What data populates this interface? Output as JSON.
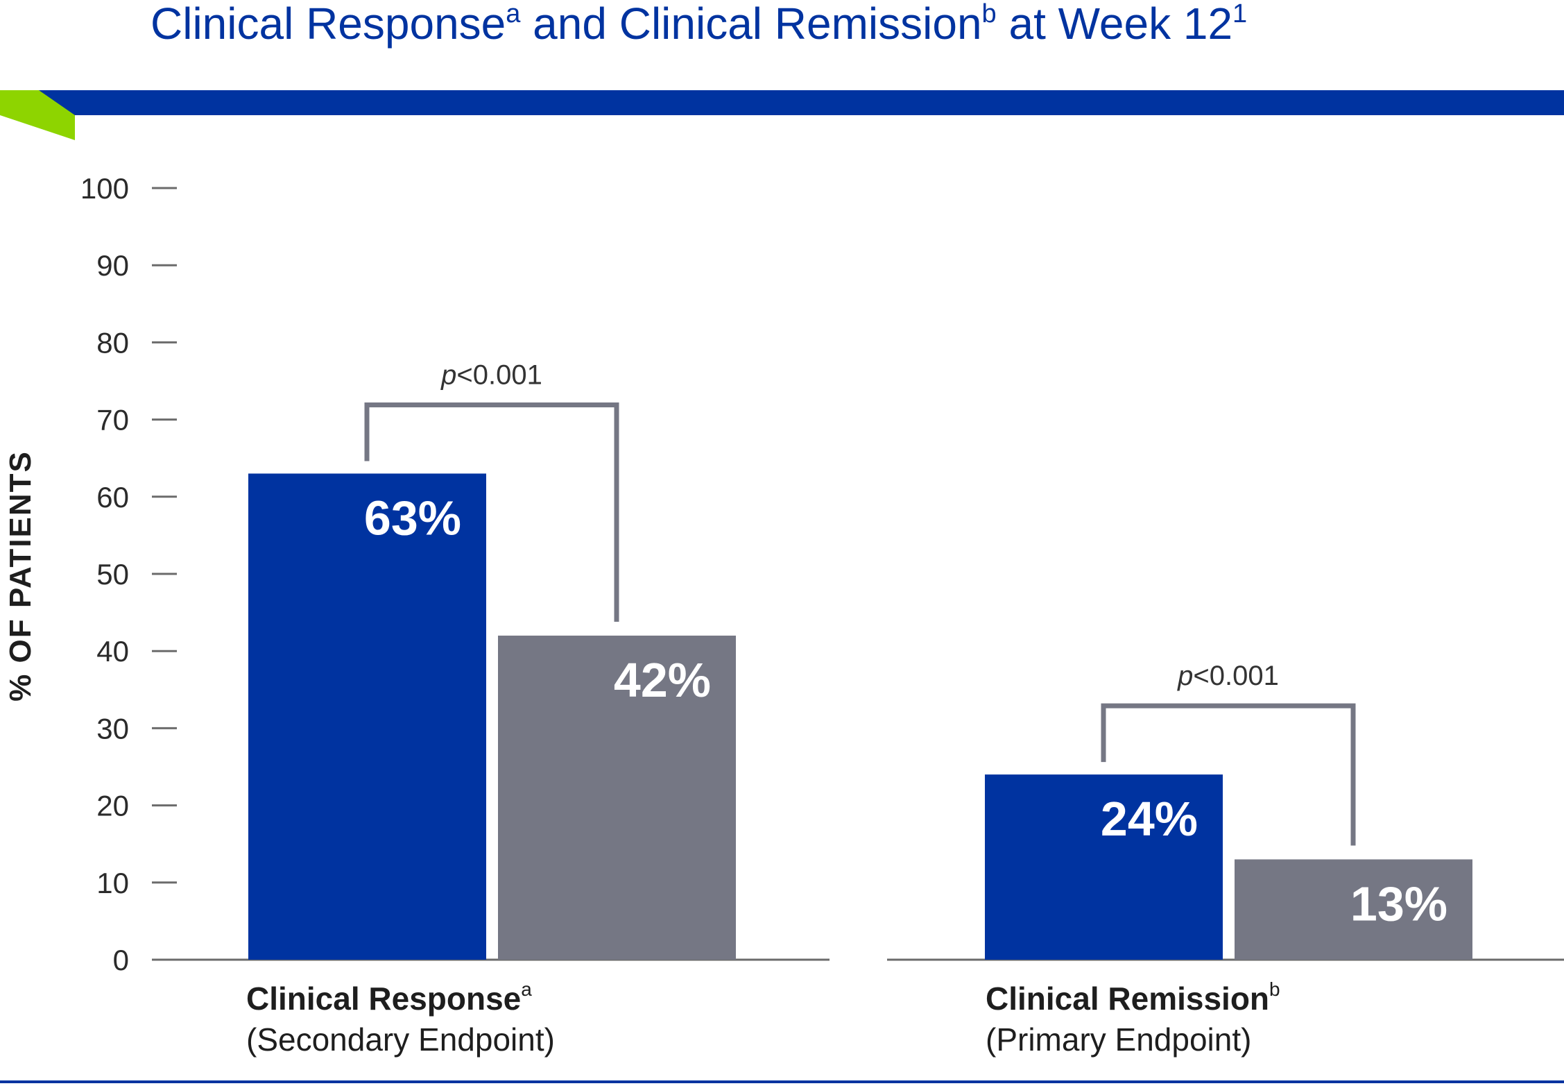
{
  "chart_data": {
    "type": "bar",
    "title": "Clinical Response",
    "title_sup1": "a",
    "title_mid": " and Clinical Remission",
    "title_sup2": "b",
    "title_end": " at Week 12",
    "title_sup3": "1",
    "ylabel": "% OF PATIENTS",
    "ylim": [
      0,
      100
    ],
    "yticks": [
      "0",
      "10",
      "20",
      "30",
      "40",
      "50",
      "60",
      "70",
      "80",
      "90",
      "100"
    ],
    "grid": false,
    "categories": [
      {
        "name": "Clinical Response",
        "sup": "a",
        "subtitle": "(Secondary Endpoint)",
        "p_value": "<0.001",
        "p_symbol": "p"
      },
      {
        "name": "Clinical Remission",
        "sup": "b",
        "subtitle": "(Primary Endpoint)",
        "p_value": "<0.001",
        "p_symbol": "p"
      }
    ],
    "series": [
      {
        "values": [
          63,
          24
        ],
        "labels": [
          "63%",
          "24%"
        ],
        "color": "#0033a0"
      },
      {
        "values": [
          42,
          13
        ],
        "labels": [
          "42%",
          "13%"
        ],
        "color": "#757784"
      }
    ]
  },
  "colors": {
    "brand_blue": "#0033a0",
    "accent_green": "#8ed400",
    "bracket_gray": "#757784",
    "axis_gray": "#6b6b6b"
  }
}
